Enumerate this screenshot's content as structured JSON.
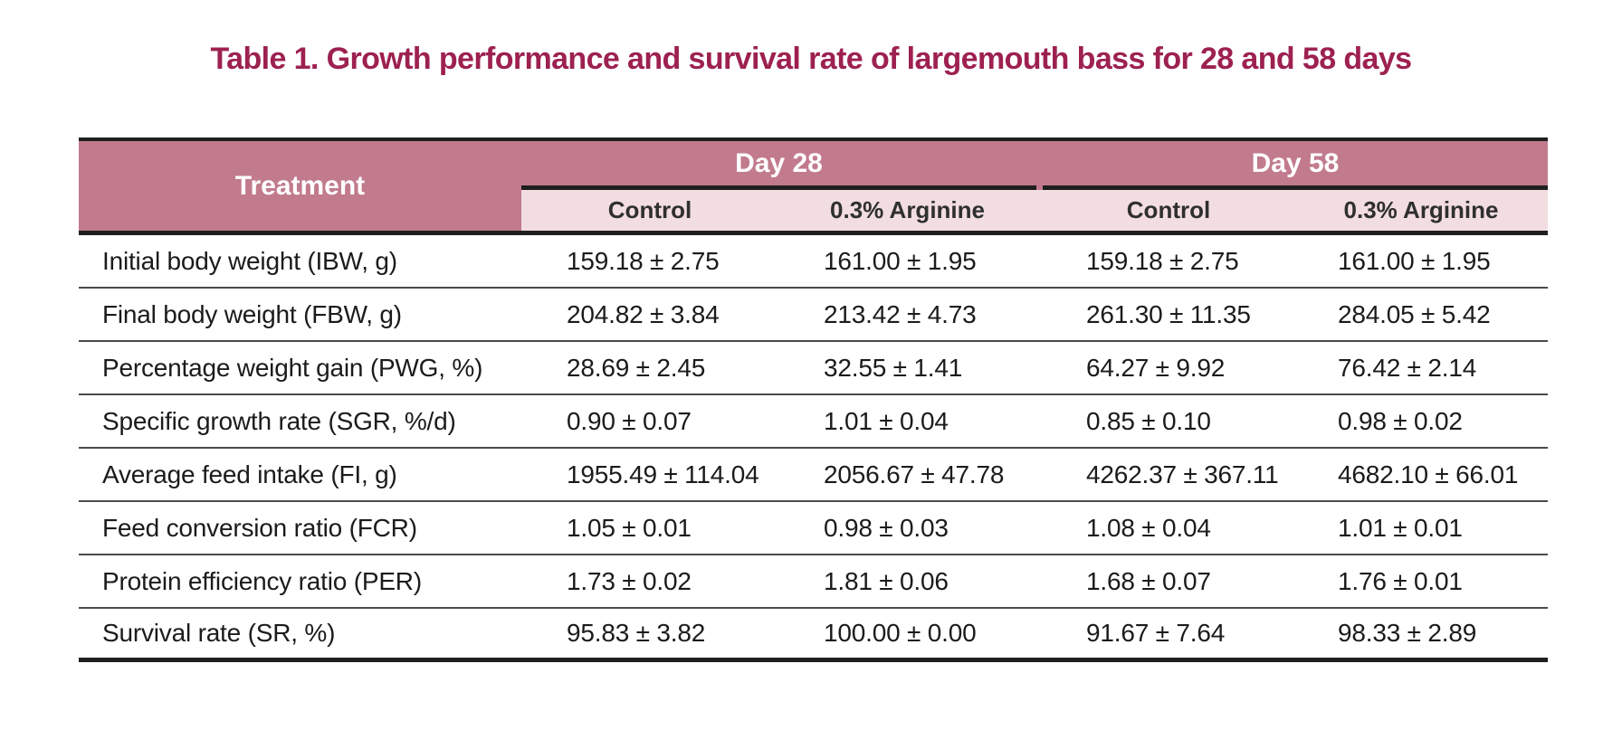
{
  "title": "Table 1. Growth performance and survival rate of largemouth bass for 28 and 58 days",
  "colors": {
    "title_text": "#9d2150",
    "header_bg": "#c17b8c",
    "header_text": "#ffffff",
    "subheader_bg": "#f2dde1",
    "subheader_text": "#2f2f2f",
    "body_text": "#1b1b1b",
    "heavy_rule": "#1f1f1f",
    "row_rule": "#4a4a4a"
  },
  "table": {
    "treatment_header": "Treatment",
    "group_headers": [
      "Day 28",
      "Day 58"
    ],
    "sub_headers": [
      "Control",
      "0.3% Arginine",
      "Control",
      "0.3% Arginine"
    ],
    "rows": [
      {
        "label": "Initial body weight (IBW, g)",
        "values": [
          "159.18 ± 2.75",
          "161.00 ± 1.95",
          "159.18 ± 2.75",
          "161.00 ± 1.95"
        ]
      },
      {
        "label": "Final body weight (FBW, g)",
        "values": [
          "204.82 ± 3.84",
          "213.42 ± 4.73",
          "261.30 ± 11.35",
          "284.05 ± 5.42"
        ]
      },
      {
        "label": "Percentage weight gain (PWG, %)",
        "values": [
          "28.69 ± 2.45",
          "32.55 ± 1.41",
          "64.27 ± 9.92",
          "76.42 ± 2.14"
        ]
      },
      {
        "label": "Specific growth rate (SGR, %/d)",
        "values": [
          "0.90 ± 0.07",
          "1.01 ± 0.04",
          "0.85 ± 0.10",
          "0.98 ± 0.02"
        ]
      },
      {
        "label": "Average feed intake (FI, g)",
        "values": [
          "1955.49 ± 114.04",
          "2056.67 ± 47.78",
          "4262.37 ± 367.11",
          "4682.10 ± 66.01"
        ]
      },
      {
        "label": "Feed conversion ratio (FCR)",
        "values": [
          "1.05 ± 0.01",
          "0.98 ± 0.03",
          "1.08 ± 0.04",
          "1.01 ± 0.01"
        ]
      },
      {
        "label": "Protein efficiency ratio (PER)",
        "values": [
          "1.73 ± 0.02",
          "1.81 ± 0.06",
          "1.68 ± 0.07",
          "1.76 ± 0.01"
        ]
      },
      {
        "label": "Survival rate (SR, %)",
        "values": [
          "95.83 ± 3.82",
          "100.00 ± 0.00",
          "91.67 ± 7.64",
          "98.33 ± 2.89"
        ]
      }
    ]
  }
}
